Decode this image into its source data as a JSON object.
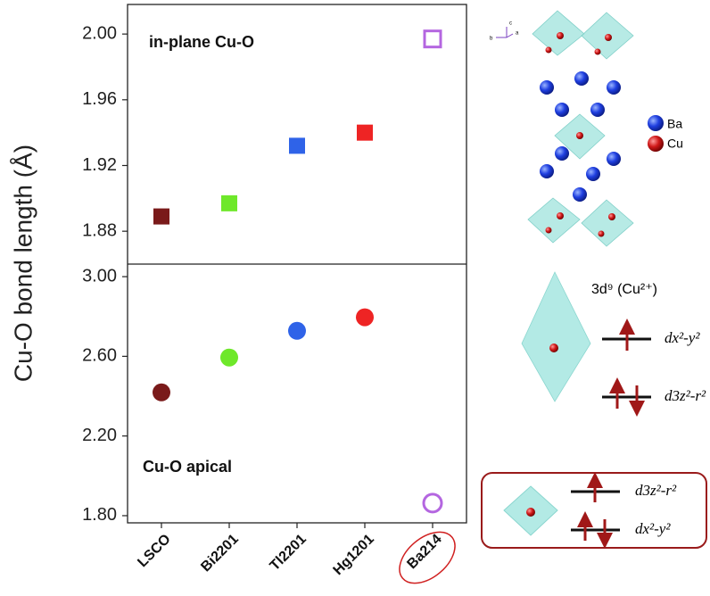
{
  "chart_data": [
    {
      "type": "scatter",
      "marker": "square",
      "annotation": "in-plane Cu-O",
      "ylabel": "Cu-O bond length (Å)",
      "categories": [
        null,
        null,
        null,
        null,
        null
      ],
      "values": [
        1.889,
        1.897,
        1.932,
        1.94,
        1.997
      ],
      "colors": [
        "#7a1a1a",
        "#6ee82a",
        "#2f63e8",
        "#ee2424",
        "#b466e0"
      ],
      "hollow": [
        false,
        false,
        false,
        false,
        true
      ],
      "ylim": [
        1.86,
        2.018
      ],
      "yticks": [
        {
          "value": 1.88,
          "label": "1.88"
        },
        {
          "value": 1.92,
          "label": "1.92"
        },
        {
          "value": 1.96,
          "label": "1.96"
        },
        {
          "value": 2.0,
          "label": "2.00"
        }
      ]
    },
    {
      "type": "scatter",
      "marker": "circle",
      "annotation": "Cu-O apical",
      "categories": [
        "LSCO",
        "Bi2201",
        "Tl2201",
        "Hg1201",
        "Ba214"
      ],
      "highlight": 4,
      "values": [
        2.419,
        2.594,
        2.728,
        2.796,
        1.863
      ],
      "colors": [
        "#7a1a1a",
        "#6ee82a",
        "#2f63e8",
        "#ee2424",
        "#b466e0"
      ],
      "hollow": [
        false,
        false,
        false,
        false,
        true
      ],
      "ylim": [
        1.764,
        3.063
      ],
      "yticks": [
        {
          "value": 1.8,
          "label": "1.80"
        },
        {
          "value": 2.2,
          "label": "2.20"
        },
        {
          "value": 2.6,
          "label": "2.60"
        },
        {
          "value": 3.0,
          "label": "3.00"
        }
      ]
    }
  ],
  "diagram": {
    "axes": [
      "c",
      "b",
      "a"
    ],
    "ba": "Ba",
    "cu": "Cu",
    "config": "3d⁹ (Cu²⁺)",
    "upper": {
      "top": "dx²-y²",
      "bottom": "d3z²-r²"
    },
    "box": {
      "top": "d3z²-r²",
      "bottom": "dx²-y²"
    }
  }
}
